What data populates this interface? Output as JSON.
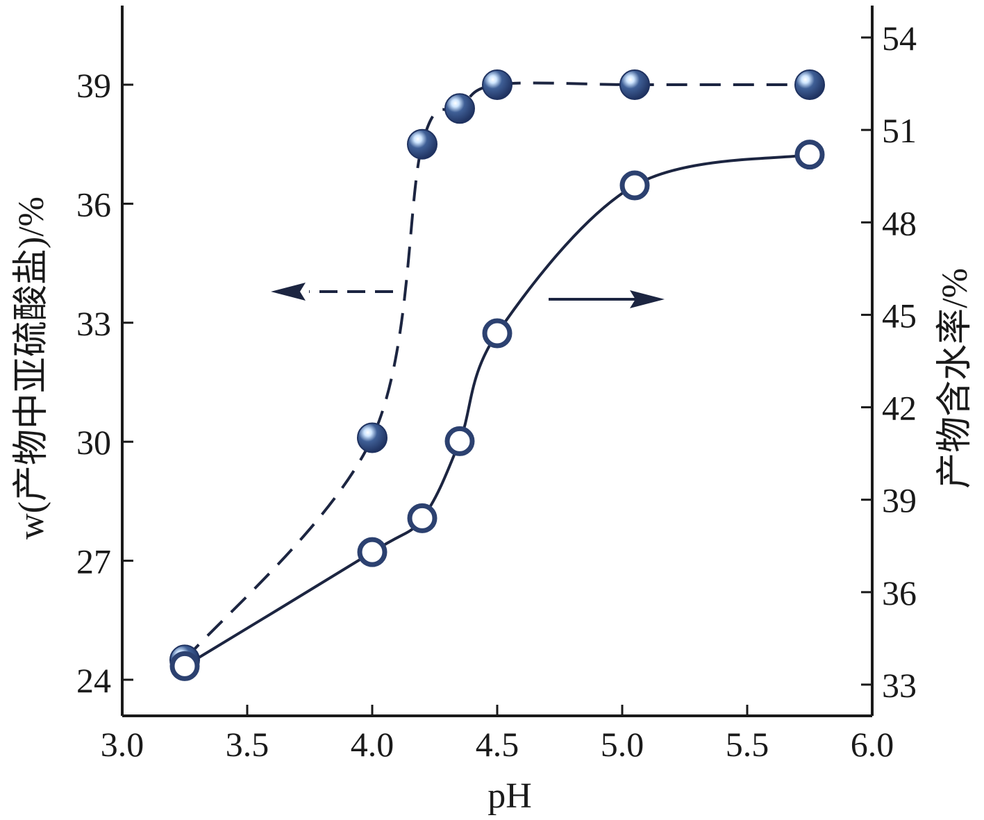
{
  "colors": {
    "axis": "#1a1a1a",
    "line": "#1c2541",
    "marker_fill": "#2c4170",
    "marker_highlight": "#e8f3ff",
    "open_marker_stroke": "#2c4170",
    "open_marker_fill": "#ffffff"
  },
  "chart_data": {
    "type": "scatter",
    "xlabel": "pH",
    "ylabel_left": "w(产物中亚硫酸盐)/%",
    "ylabel_right": "产物含水率/%",
    "xlim": [
      3.0,
      6.0
    ],
    "ylim_left": [
      23,
      41
    ],
    "ylim_right": [
      31.5,
      55.5
    ],
    "xticks": [
      "3.0",
      "3.5",
      "4.0",
      "4.5",
      "5.0",
      "5.5",
      "6.0"
    ],
    "yticks_left": [
      "24",
      "27",
      "30",
      "33",
      "36",
      "39"
    ],
    "yticks_right": [
      "33",
      "36",
      "39",
      "42",
      "45",
      "48",
      "51",
      "54"
    ],
    "grid": false,
    "series": [
      {
        "axis": "left",
        "line_style": "dashed",
        "marker": "filled-circle",
        "x": [
          3.25,
          4.0,
          4.2,
          4.35,
          4.5,
          5.05,
          5.75
        ],
        "y": [
          24.5,
          30.1,
          37.5,
          38.4,
          39.0,
          39.0,
          39.0
        ]
      },
      {
        "axis": "right",
        "line_style": "solid",
        "marker": "open-circle",
        "x": [
          3.25,
          4.0,
          4.2,
          4.35,
          4.5,
          5.05,
          5.75
        ],
        "y": [
          33.6,
          37.3,
          38.4,
          40.9,
          44.4,
          49.2,
          50.2
        ]
      }
    ],
    "annotations": [
      {
        "type": "arrow",
        "direction": "left",
        "points_to_axis": "left",
        "line_style": "dashed"
      },
      {
        "type": "arrow",
        "direction": "right",
        "points_to_axis": "right",
        "line_style": "solid"
      }
    ]
  }
}
